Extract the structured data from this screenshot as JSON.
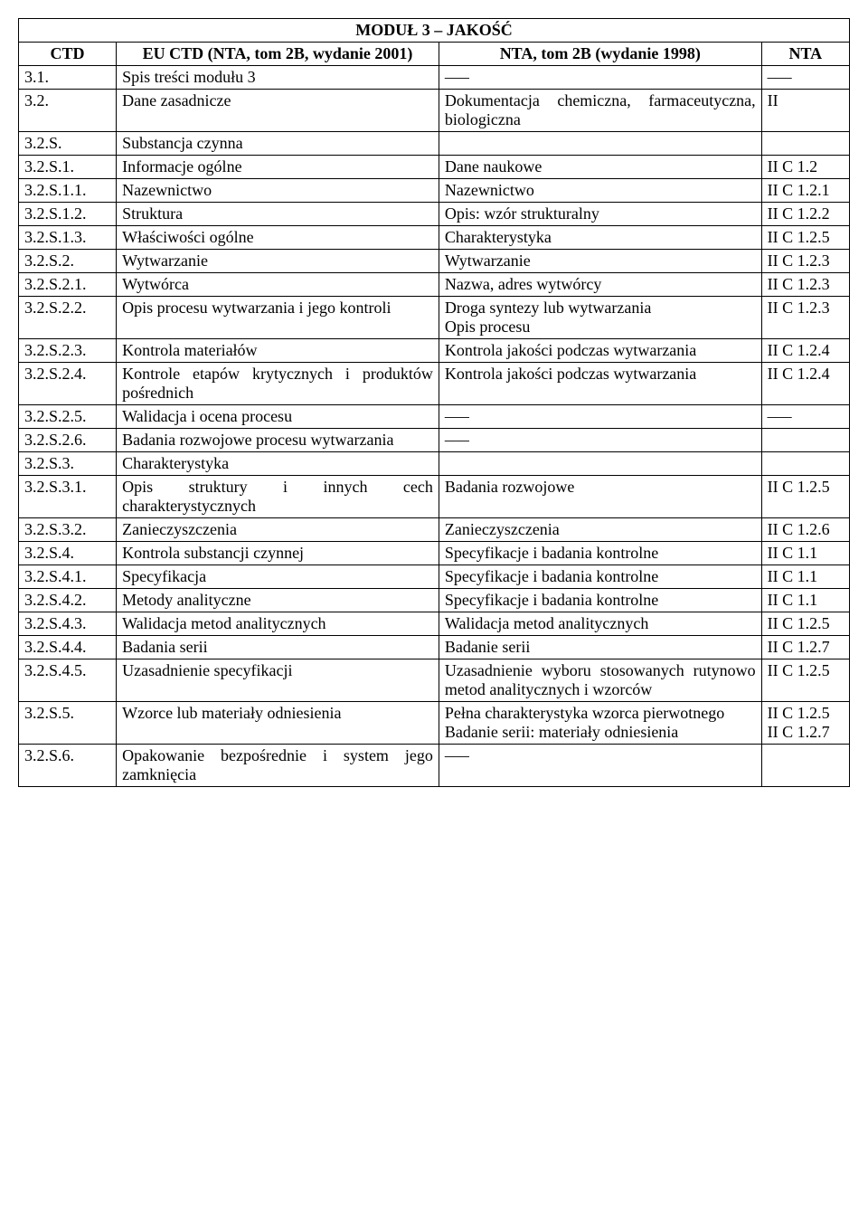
{
  "title": "MODUŁ 3 – JAKOŚĆ",
  "headers": {
    "ctd": "CTD",
    "eu": "EU CTD (NTA, tom 2B, wydanie 2001)",
    "nta2b": "NTA, tom 2B (wydanie 1998)",
    "nta": "NTA"
  },
  "dash": "–––",
  "rows": [
    {
      "ctd": "3.1.",
      "eu": "Spis treści modułu 3",
      "nta2b_dash": true,
      "nta_dash": true
    },
    {
      "ctd": "3.2.",
      "eu": "Dane zasadnicze",
      "nta2b_justify": "Dokumentacja chemiczna, farmaceutyczna, biologiczna",
      "nta": "II"
    },
    {
      "ctd": "3.2.S.",
      "eu": "Substancja czynna",
      "nta2b": "",
      "nta": ""
    },
    {
      "ctd": "3.2.S.1.",
      "eu": "Informacje ogólne",
      "nta2b": "Dane naukowe",
      "nta": "II C 1.2"
    },
    {
      "ctd": "3.2.S.1.1.",
      "eu": "Nazewnictwo",
      "nta2b": "Nazewnictwo",
      "nta": "II C 1.2.1"
    },
    {
      "ctd": "3.2.S.1.2.",
      "eu": "Struktura",
      "nta2b": "Opis: wzór strukturalny",
      "nta": "II C 1.2.2"
    },
    {
      "ctd": "3.2.S.1.3.",
      "eu": "Właściwości ogólne",
      "nta2b": "Charakterystyka",
      "nta": "II C 1.2.5"
    },
    {
      "ctd": "3.2.S.2.",
      "eu": "Wytwarzanie",
      "nta2b": "Wytwarzanie",
      "nta": "II C 1.2.3"
    },
    {
      "ctd": "3.2.S.2.1.",
      "eu": "Wytwórca",
      "nta2b": "Nazwa, adres wytwórcy",
      "nta": "II C 1.2.3"
    },
    {
      "ctd": "3.2.S.2.2.",
      "eu_justify": "Opis procesu wytwarzania i jego kontroli",
      "nta2b": "Droga syntezy lub wytwarzania\nOpis procesu",
      "nta": "II C 1.2.3"
    },
    {
      "ctd": "3.2.S.2.3.",
      "eu": "Kontrola materiałów",
      "nta2b_justify": "Kontrola jakości podczas wytwarzania",
      "nta": "II C 1.2.4"
    },
    {
      "ctd": "3.2.S.2.4.",
      "eu_justify": "Kontrole etapów krytycznych i produktów pośrednich",
      "nta2b_justify": "Kontrola jakości podczas wytwarzania",
      "nta": "II C 1.2.4"
    },
    {
      "ctd": "3.2.S.2.5.",
      "eu": "Walidacja i ocena procesu",
      "nta2b_dash": true,
      "nta_dash": true
    },
    {
      "ctd": "3.2.S.2.6.",
      "eu_justify": "Badania rozwojowe procesu wytwarzania",
      "nta2b_dash": true,
      "nta": ""
    },
    {
      "ctd": "3.2.S.3.",
      "eu": "Charakterystyka",
      "nta2b": "",
      "nta": ""
    },
    {
      "ctd": "3.2.S.3.1.",
      "eu_justify": "Opis struktury i innych cech charakterystycznych",
      "nta2b": "Badania rozwojowe",
      "nta": "II C 1.2.5"
    },
    {
      "ctd": "3.2.S.3.2.",
      "eu": "Zanieczyszczenia",
      "nta2b": "Zanieczyszczenia",
      "nta": "II C 1.2.6"
    },
    {
      "ctd": "3.2.S.4.",
      "eu": "Kontrola substancji czynnej",
      "nta2b": "Specyfikacje i badania kontrolne",
      "nta": "II C 1.1"
    },
    {
      "ctd": "3.2.S.4.1.",
      "eu": "Specyfikacja",
      "nta2b": "Specyfikacje i badania kontrolne",
      "nta": "II C 1.1"
    },
    {
      "ctd": "3.2.S.4.2.",
      "eu": "Metody analityczne",
      "nta2b": "Specyfikacje i badania kontrolne",
      "nta": "II C 1.1"
    },
    {
      "ctd": "3.2.S.4.3.",
      "eu": "Walidacja metod analitycznych",
      "nta2b": "Walidacja metod analitycznych",
      "nta": "II C 1.2.5"
    },
    {
      "ctd": "3.2.S.4.4.",
      "eu": "Badania serii",
      "nta2b": "Badanie serii",
      "nta": "II C 1.2.7"
    },
    {
      "ctd": "3.2.S.4.5.",
      "eu": "Uzasadnienie specyfikacji",
      "nta2b_justify": "Uzasadnienie wyboru stosowanych rutynowo metod analitycznych i wzorców",
      "nta": "II C 1.2.5"
    },
    {
      "ctd": "3.2.S.5.",
      "eu": "Wzorce lub materiały odniesienia",
      "nta2b_justify": "Pełna charakterystyka wzorca pierwotnego\nBadanie serii: materiały odniesienia",
      "nta": "II C 1.2.5 II C 1.2.7"
    },
    {
      "ctd": "3.2.S.6.",
      "eu_justify": "Opakowanie bezpośrednie i system jego zamknięcia",
      "nta2b_dash": true,
      "nta": ""
    }
  ]
}
